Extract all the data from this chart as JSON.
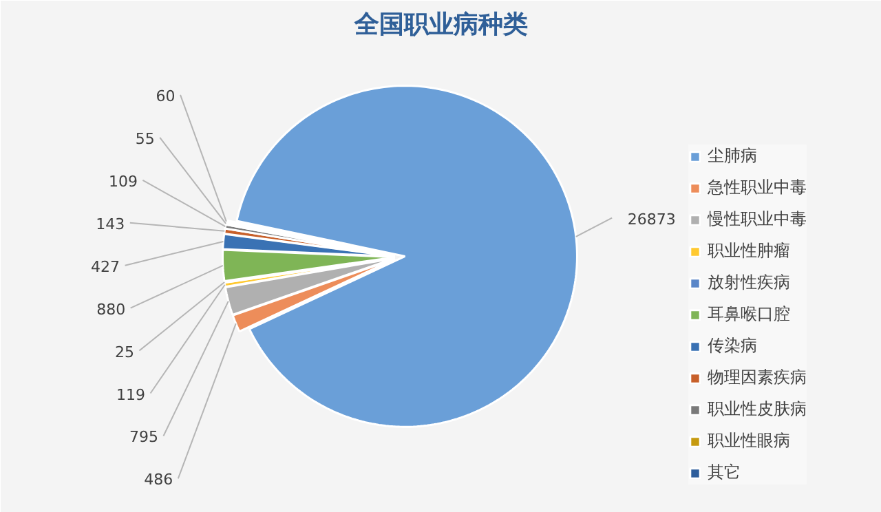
{
  "chart_data": {
    "type": "pie",
    "title": "全国职业病种类",
    "categories": [
      "尘肺病",
      "急性职业中毒",
      "慢性职业中毒",
      "职业性肿瘤",
      "放射性疾病",
      "耳鼻喉口腔",
      "传染病",
      "物理因素疾病",
      "职业性皮肤病",
      "职业性眼病",
      "其它"
    ],
    "values": [
      26873,
      486,
      795,
      119,
      25,
      880,
      427,
      143,
      109,
      55,
      60
    ],
    "colors": [
      "#6a9fd8",
      "#ed8d5a",
      "#b0b0b0",
      "#ffc930",
      "#5a86c8",
      "#7fb556",
      "#3a72b4",
      "#c8602a",
      "#7a7a7a",
      "#c69a10",
      "#2e5e9c"
    ],
    "data_labels": true,
    "legend": "right"
  }
}
